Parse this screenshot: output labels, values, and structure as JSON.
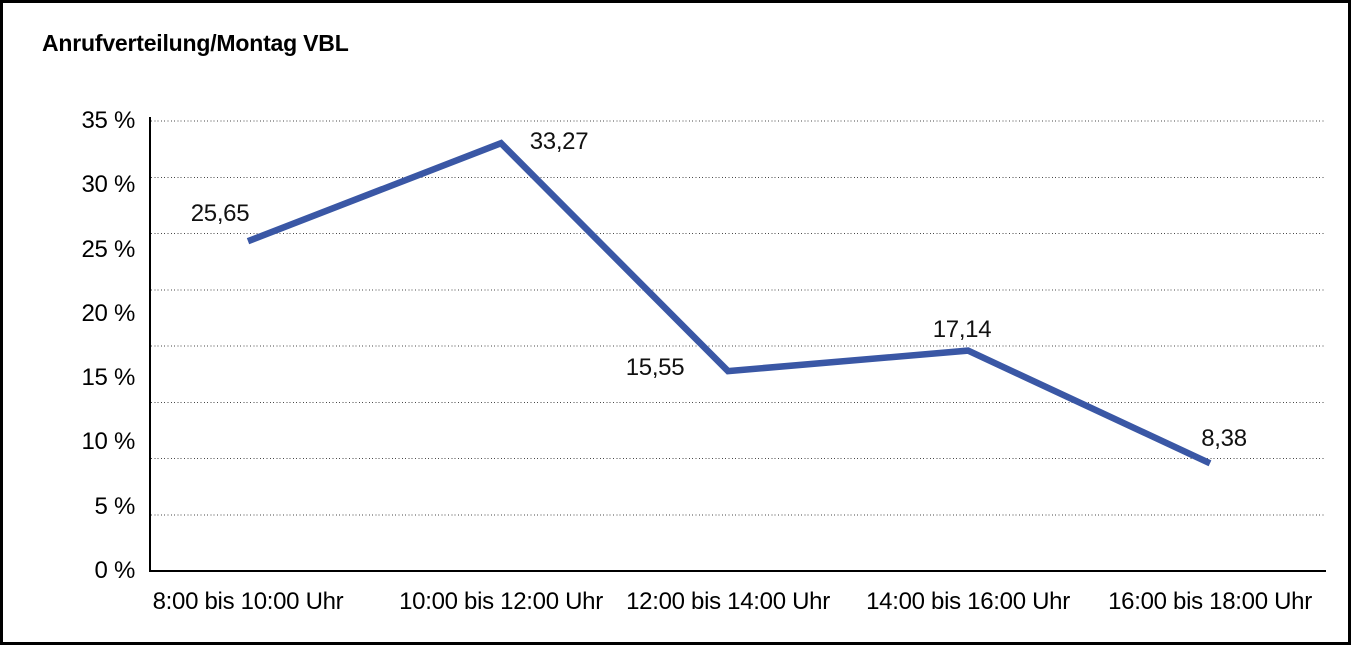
{
  "chart_data": {
    "type": "line",
    "title": "Anrufverteilung/Montag VBL",
    "categories": [
      "8:00 bis 10:00 Uhr",
      "10:00 bis 12:00 Uhr",
      "12:00 bis 14:00 Uhr",
      "14:00 bis 16:00 Uhr",
      "16:00 bis 18:00 Uhr"
    ],
    "values": [
      25.65,
      33.27,
      15.55,
      17.14,
      8.38
    ],
    "point_labels": [
      "25,65",
      "33,27",
      "15,55",
      "17,14",
      "8,38"
    ],
    "y_ticks": [
      "35 %",
      "30 %",
      "25 %",
      "20 %",
      "15 %",
      "10 %",
      "5 %",
      "0 %"
    ],
    "xlabel": "",
    "ylabel": "",
    "ylim": [
      0,
      35
    ],
    "grid": "dotted-horizontal",
    "gridline_count": 9,
    "legend": "none",
    "line_color": "#3A57A5",
    "axis_color": "#000000",
    "text_color": "#000000"
  }
}
